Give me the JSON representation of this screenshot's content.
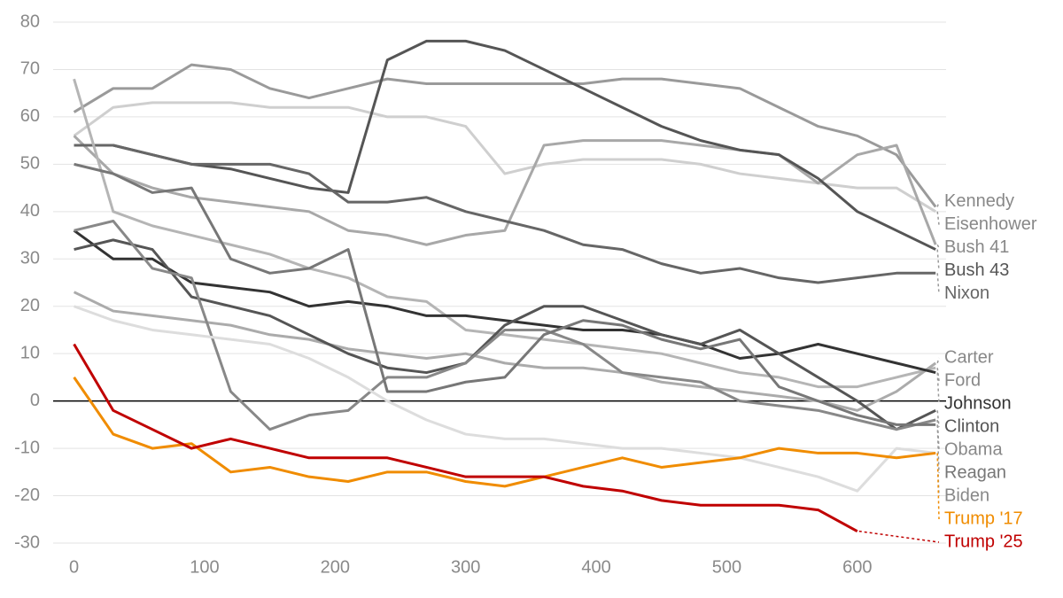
{
  "chart_data": {
    "type": "line",
    "x": [
      0,
      30,
      60,
      90,
      120,
      150,
      180,
      210,
      240,
      270,
      300,
      330,
      360,
      390,
      420,
      450,
      480,
      510,
      540,
      570,
      600,
      630,
      660
    ],
    "xlim": [
      -16,
      668
    ],
    "ylim": [
      -30,
      80
    ],
    "xticks": [
      0,
      100,
      200,
      300,
      400,
      500,
      600
    ],
    "yticks": [
      -30,
      -20,
      -10,
      0,
      10,
      20,
      30,
      40,
      50,
      60,
      70,
      80
    ],
    "grid": true,
    "series": [
      {
        "name": "Kennedy",
        "color": "#9a9a9a",
        "values": [
          61,
          66,
          66,
          71,
          70,
          66,
          64,
          66,
          68,
          67,
          67,
          67,
          67,
          67,
          68,
          68,
          67,
          66,
          62,
          58,
          56,
          52,
          41
        ]
      },
      {
        "name": "Eisenhower",
        "color": "#cfcfcf",
        "values": [
          56,
          62,
          63,
          63,
          63,
          62,
          62,
          62,
          60,
          60,
          58,
          48,
          50,
          51,
          51,
          51,
          50,
          48,
          47,
          46,
          45,
          45,
          40
        ]
      },
      {
        "name": "Bush 41",
        "color": "#a8a8a8",
        "values": [
          56,
          48,
          45,
          43,
          42,
          41,
          40,
          36,
          35,
          33,
          35,
          36,
          54,
          55,
          55,
          55,
          54,
          53,
          52,
          46,
          52,
          54,
          33
        ]
      },
      {
        "name": "Bush 43",
        "color": "#555555",
        "values": [
          54,
          54,
          52,
          50,
          49,
          47,
          45,
          44,
          72,
          76,
          76,
          74,
          70,
          66,
          62,
          58,
          55,
          53,
          52,
          47,
          40,
          36,
          32
        ]
      },
      {
        "name": "Nixon",
        "color": "#666666",
        "values": [
          54,
          54,
          52,
          50,
          50,
          50,
          48,
          42,
          42,
          43,
          40,
          38,
          36,
          33,
          32,
          29,
          27,
          28,
          26,
          25,
          26,
          27,
          27
        ]
      },
      {
        "name": "Ford",
        "color": "#b5b5b5",
        "values": [
          68,
          40,
          37,
          35,
          33,
          31,
          28,
          26,
          22,
          21,
          15,
          14,
          13,
          12,
          11,
          10,
          8,
          6,
          5,
          3,
          3,
          5,
          7
        ]
      },
      {
        "name": "Carter",
        "color": "#ababab",
        "values": [
          23,
          19,
          18,
          17,
          16,
          14,
          13,
          11,
          10,
          9,
          10,
          8,
          7,
          7,
          6,
          4,
          3,
          2,
          1,
          0,
          -2,
          2,
          8
        ]
      },
      {
        "name": "Johnson",
        "color": "#333333",
        "values": [
          36,
          30,
          30,
          25,
          24,
          23,
          20,
          21,
          20,
          18,
          18,
          17,
          16,
          15,
          15,
          14,
          12,
          9,
          10,
          12,
          10,
          8,
          6
        ]
      },
      {
        "name": "Clinton",
        "color": "#555555",
        "values": [
          32,
          34,
          32,
          22,
          20,
          18,
          14,
          10,
          7,
          6,
          8,
          16,
          20,
          20,
          17,
          14,
          12,
          15,
          10,
          5,
          0,
          -6,
          -2
        ]
      },
      {
        "name": "Obama",
        "color": "#888888",
        "values": [
          36,
          38,
          28,
          26,
          2,
          -6,
          -3,
          -2,
          5,
          5,
          8,
          15,
          15,
          12,
          6,
          5,
          4,
          0,
          -1,
          -2,
          -4,
          -6,
          -4
        ]
      },
      {
        "name": "Reagan",
        "color": "#777777",
        "values": [
          50,
          48,
          44,
          45,
          30,
          27,
          28,
          32,
          2,
          2,
          4,
          5,
          14,
          17,
          16,
          13,
          11,
          13,
          3,
          0,
          -3,
          -5,
          -5
        ]
      },
      {
        "name": "Biden",
        "color": "#dddddd",
        "values": [
          20,
          17,
          15,
          14,
          13,
          12,
          9,
          5,
          0,
          -4,
          -7,
          -8,
          -8,
          -9,
          -10,
          -10,
          -11,
          -12,
          -14,
          -16,
          -19,
          -10,
          -11
        ]
      },
      {
        "name": "Trump '17",
        "color": "#f08c00",
        "values": [
          5,
          -7,
          -10,
          -9,
          -15,
          -14,
          -16,
          -17,
          -15,
          -15,
          -17,
          -18,
          -16,
          -14,
          -12,
          -14,
          -13,
          -12,
          -10,
          -11,
          -11,
          -12,
          -11
        ]
      },
      {
        "name": "Trump '25",
        "color": "#c00000",
        "values": [
          12,
          -2,
          -6,
          -10,
          -8,
          -10,
          -12,
          -12,
          -12,
          -14,
          -16,
          -16,
          -16,
          -18,
          -19,
          -21,
          -22,
          -22,
          -22,
          -23,
          -27.5,
          null,
          null
        ]
      }
    ]
  }
}
